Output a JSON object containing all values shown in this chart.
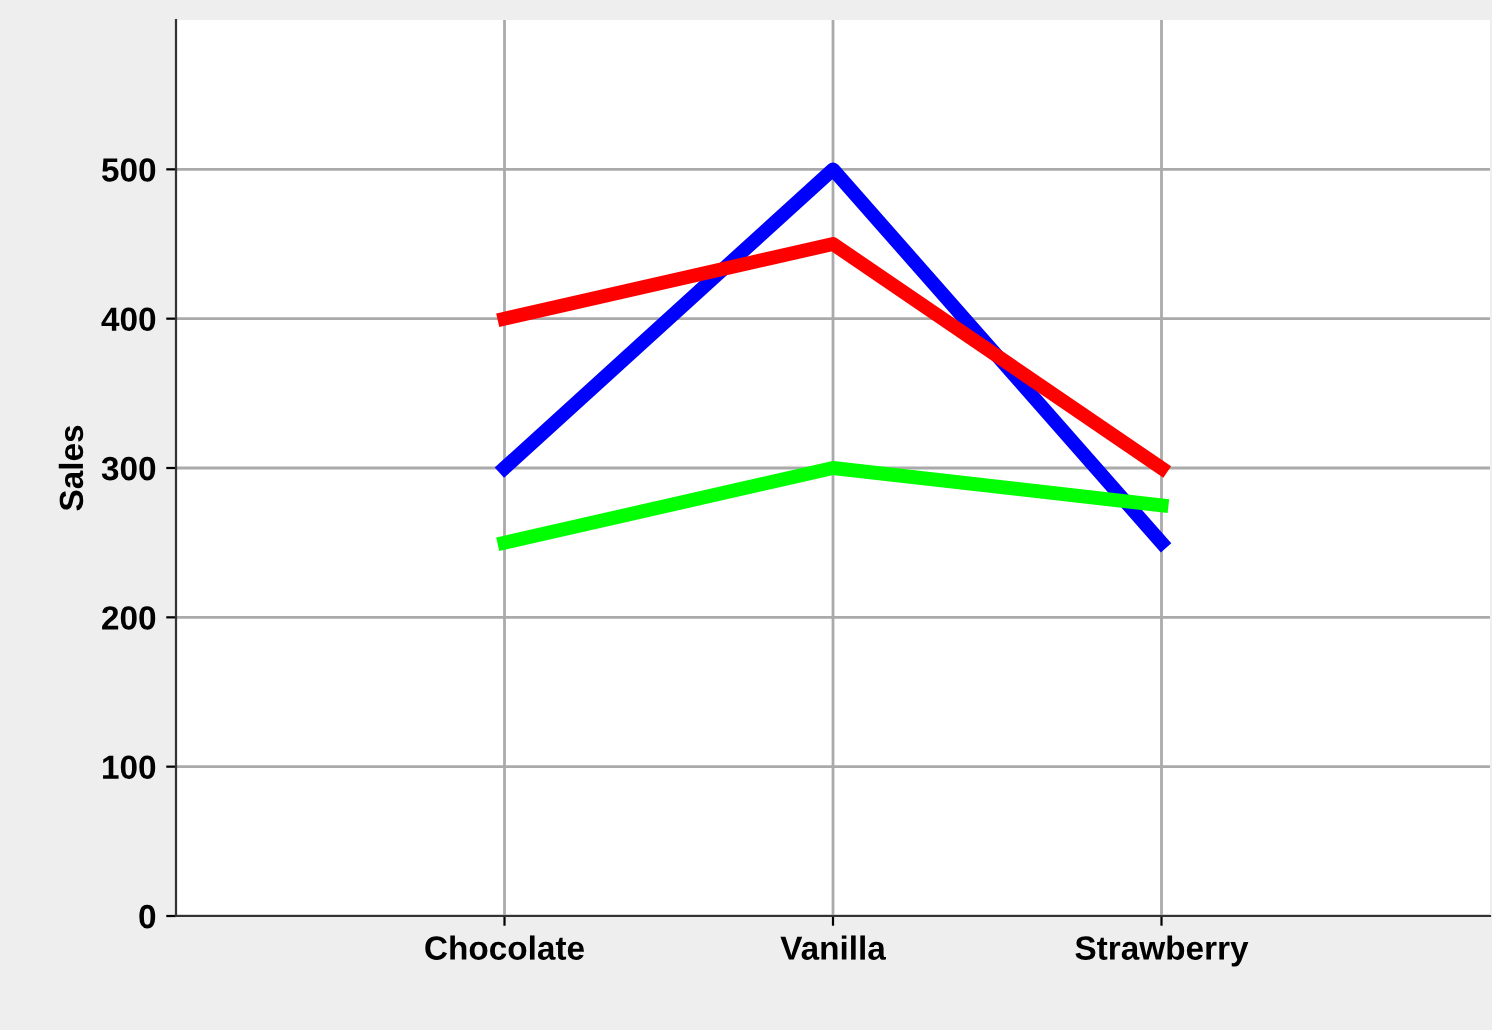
{
  "chart_data": {
    "type": "line",
    "ylabel": "Sales",
    "categories": [
      "Chocolate",
      "Vanilla",
      "Strawberry"
    ],
    "series": [
      {
        "color": "#0000ff",
        "values": [
          300,
          500,
          250
        ]
      },
      {
        "color": "#ff0000",
        "values": [
          400,
          450,
          300
        ]
      },
      {
        "color": "#00ff00",
        "values": [
          250,
          300,
          275
        ]
      }
    ],
    "ylim": [
      0,
      600
    ],
    "yticks": [
      0,
      100,
      200,
      300,
      400,
      500
    ],
    "grid": true,
    "legend": false,
    "marker": "none",
    "line_style": "solid"
  }
}
